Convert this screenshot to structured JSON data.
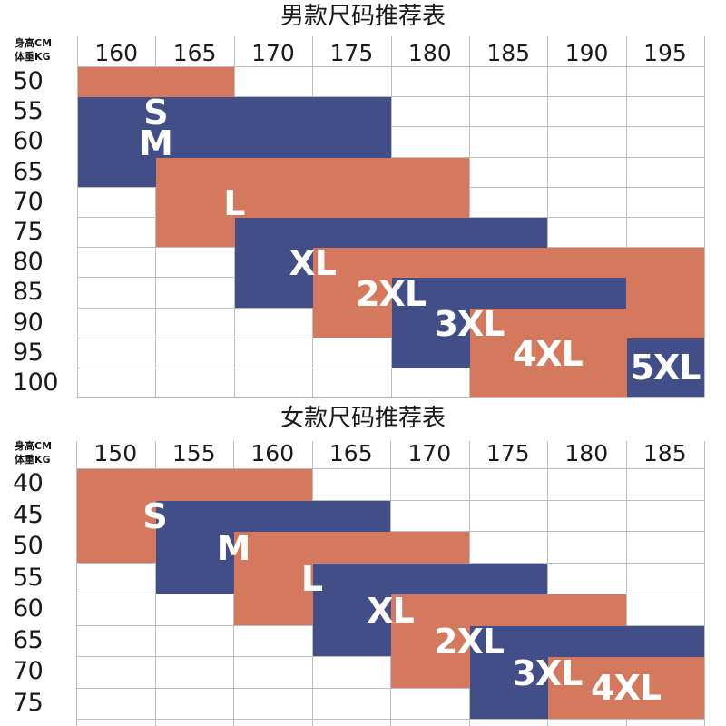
{
  "colors": {
    "orange": "#d4785e",
    "blue": "#414e88",
    "grid": "#bdbdbd"
  },
  "chart_data": [
    {
      "type": "table",
      "title": "男款尺码推荐表",
      "corner_label": [
        "身高CM",
        "体重KG"
      ],
      "columns": [
        160,
        165,
        170,
        175,
        180,
        185,
        190,
        195
      ],
      "rows": [
        50,
        55,
        60,
        65,
        70,
        75,
        80,
        85,
        90,
        95,
        100
      ],
      "sizes": [
        {
          "name": "S",
          "color": "orange",
          "height_range": [
            160,
            165
          ],
          "weight_range": [
            50,
            60
          ]
        },
        {
          "name": "M",
          "color": "blue",
          "height_range": [
            160,
            175
          ],
          "weight_range": [
            55,
            65
          ]
        },
        {
          "name": "L",
          "color": "orange",
          "height_range": [
            165,
            180
          ],
          "weight_range": [
            65,
            75
          ]
        },
        {
          "name": "XL",
          "color": "blue",
          "height_range": [
            170,
            185
          ],
          "weight_range": [
            75,
            85
          ]
        },
        {
          "name": "2XL",
          "color": "orange",
          "height_range": [
            175,
            195
          ],
          "weight_range": [
            80,
            90
          ]
        },
        {
          "name": "3XL",
          "color": "blue",
          "height_range": [
            180,
            190
          ],
          "weight_range": [
            85,
            95
          ]
        },
        {
          "name": "4XL",
          "color": "orange",
          "height_range": [
            185,
            195
          ],
          "weight_range": [
            90,
            100
          ]
        },
        {
          "name": "5XL",
          "color": "blue",
          "height_range": [
            195,
            195
          ],
          "weight_range": [
            95,
            100
          ]
        }
      ]
    },
    {
      "type": "table",
      "title": "女款尺码推荐表",
      "corner_label": [
        "身高CM",
        "体重KG"
      ],
      "columns": [
        150,
        155,
        160,
        165,
        170,
        175,
        180,
        185
      ],
      "rows": [
        40,
        45,
        50,
        55,
        60,
        65,
        70,
        75
      ],
      "sizes": [
        {
          "name": "S",
          "color": "orange",
          "height_range": [
            150,
            160
          ],
          "weight_range": [
            40,
            50
          ]
        },
        {
          "name": "M",
          "color": "blue",
          "height_range": [
            155,
            165
          ],
          "weight_range": [
            45,
            55
          ]
        },
        {
          "name": "L",
          "color": "orange",
          "height_range": [
            160,
            170
          ],
          "weight_range": [
            50,
            60
          ]
        },
        {
          "name": "XL",
          "color": "blue",
          "height_range": [
            165,
            175
          ],
          "weight_range": [
            55,
            65
          ]
        },
        {
          "name": "2XL",
          "color": "orange",
          "height_range": [
            170,
            180
          ],
          "weight_range": [
            60,
            70
          ]
        },
        {
          "name": "3XL",
          "color": "blue",
          "height_range": [
            175,
            185
          ],
          "weight_range": [
            65,
            75
          ]
        },
        {
          "name": "4XL",
          "color": "orange",
          "height_range": [
            180,
            185
          ],
          "weight_range": [
            70,
            75
          ]
        }
      ]
    }
  ]
}
